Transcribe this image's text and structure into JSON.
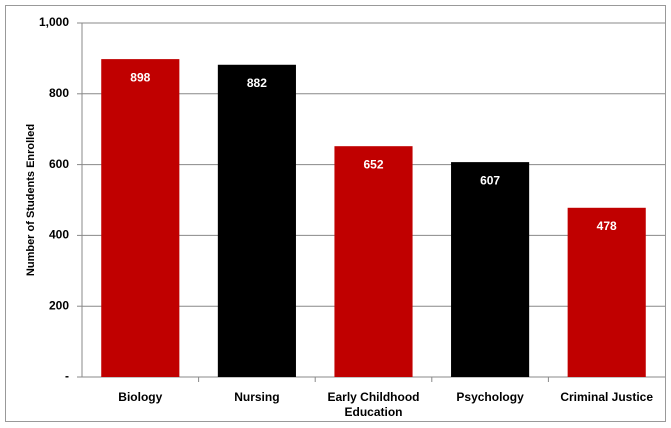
{
  "chart_data": {
    "type": "bar",
    "y_label": "Number of Students Enrolled",
    "categories": [
      "Biology",
      "Nursing",
      "Early Childhood Education",
      "Psychology",
      "Criminal Justice"
    ],
    "values": [
      898,
      882,
      652,
      607,
      478
    ],
    "colors": [
      "#c00000",
      "#000000",
      "#c00000",
      "#000000",
      "#c00000"
    ],
    "ylim": [
      0,
      1000
    ],
    "yticks": [
      {
        "value": 0,
        "label": "-"
      },
      200,
      400,
      600,
      800,
      {
        "value": 1000,
        "label": "1,000"
      }
    ],
    "grid": true
  }
}
